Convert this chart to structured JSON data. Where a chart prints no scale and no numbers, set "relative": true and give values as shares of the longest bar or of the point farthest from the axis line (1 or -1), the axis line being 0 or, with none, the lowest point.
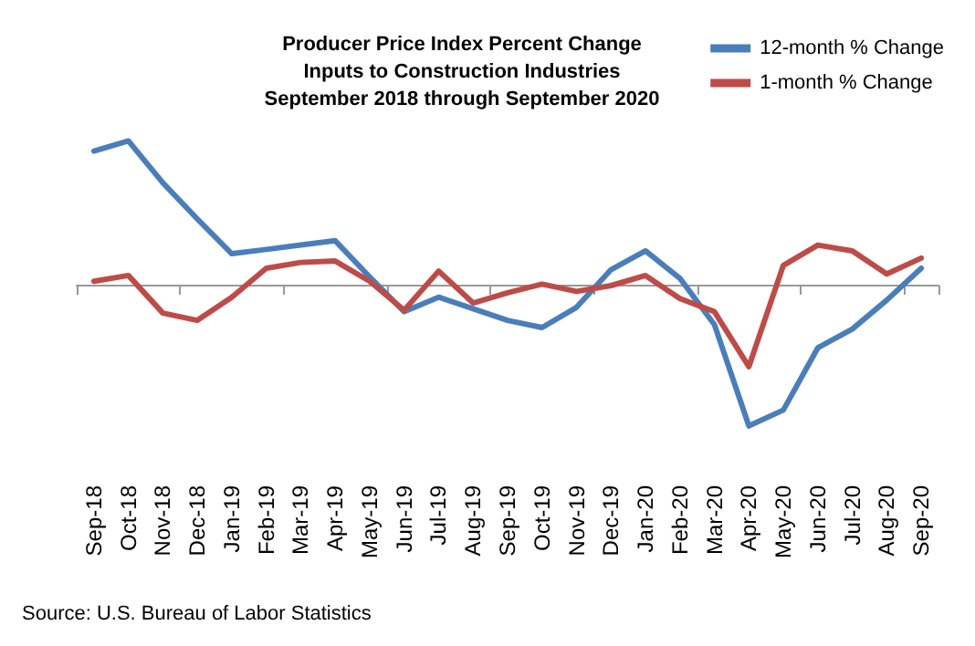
{
  "chart_data": {
    "type": "line",
    "title": "Producer Price Index Percent Change\nInputs to Construction Industries\nSeptember 2018 through September 2020",
    "relative": true,
    "legend": "top right",
    "marker": "none",
    "line_style": "solid",
    "categories": [
      "Sep-18",
      "Oct-18",
      "Nov-18",
      "Dec-18",
      "Jan-19",
      "Feb-19",
      "Mar-19",
      "Apr-19",
      "May-19",
      "Jun-19",
      "Jul-19",
      "Aug-19",
      "Sep-19",
      "Oct-19",
      "Nov-19",
      "Dec-19",
      "Jan-20",
      "Feb-20",
      "Mar-20",
      "Apr-20",
      "May-20",
      "Jun-20",
      "Jul-20",
      "Aug-20",
      "Sep-20"
    ],
    "series": [
      {
        "name": "12-month % Change",
        "color": "#4a7ebb",
        "values": [
          0.93,
          1,
          0.71,
          0.46,
          0.22,
          0.25,
          0.28,
          0.31,
          0.06,
          -0.18,
          -0.08,
          -0.16,
          -0.24,
          -0.29,
          -0.15,
          0.11,
          0.24,
          0.05,
          -0.27,
          -0.97,
          -0.86,
          -0.43,
          -0.3,
          -0.1,
          0.12
        ]
      },
      {
        "name": "1-month % Change",
        "color": "#be4b48",
        "values": [
          0.03,
          0.07,
          -0.19,
          -0.24,
          -0.08,
          0.12,
          0.16,
          0.17,
          0.03,
          -0.17,
          0.1,
          -0.12,
          -0.05,
          0.01,
          -0.04,
          0,
          0.07,
          -0.09,
          -0.18,
          -0.56,
          0.14,
          0.28,
          0.24,
          0.08,
          0.19
        ]
      }
    ],
    "annotations": [
      "Source: U.S. Bureau of Labor Statistics"
    ]
  }
}
